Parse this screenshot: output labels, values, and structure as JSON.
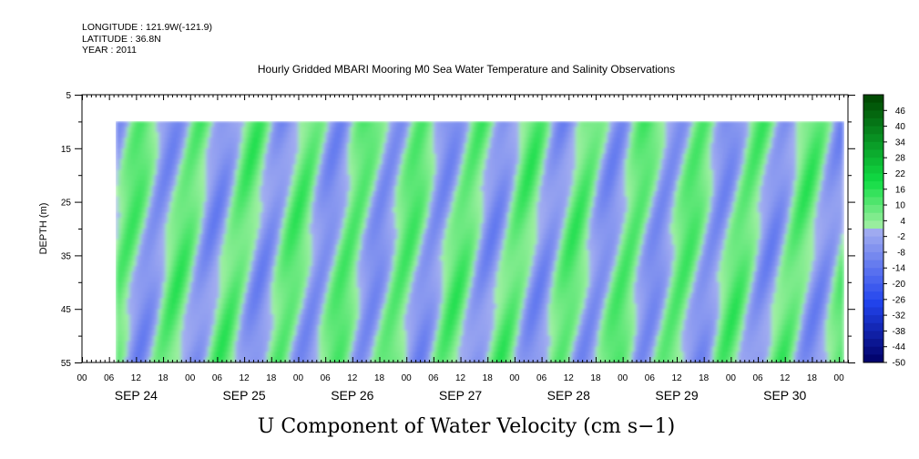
{
  "header": {
    "longitude_line": "LONGITUDE : 121.9W(-121.9)",
    "latitude_line": "LATITUDE : 36.8N",
    "year_line": "YEAR : 2011"
  },
  "chart_data": {
    "type": "heatmap",
    "title": "Hourly Gridded MBARI Mooring M0 Sea Water Temperature and Salinity Observations",
    "variable_title": "U Component of Water Velocity (cm s−1)",
    "ylabel": "DEPTH (m)",
    "y_axis": {
      "range": [
        5,
        55
      ],
      "inverted": true,
      "tick_labels": [
        "5",
        "15",
        "25",
        "35",
        "45",
        "55"
      ],
      "data_top_depth": 10
    },
    "x_axis": {
      "hour_labels": [
        "00",
        "06",
        "12",
        "18",
        "00",
        "06",
        "12",
        "18",
        "00",
        "06",
        "12",
        "18",
        "00",
        "06",
        "12",
        "18",
        "00",
        "06",
        "12",
        "18",
        "00",
        "06",
        "12",
        "18",
        "00",
        "06",
        "12",
        "18",
        "00"
      ],
      "day_labels": [
        "SEP 24",
        "SEP 25",
        "SEP 26",
        "SEP 27",
        "SEP 28",
        "SEP 29",
        "SEP 30"
      ],
      "range_hours": [
        0,
        170
      ],
      "data_start_hour": 7.5,
      "data_end_hour": 169
    },
    "colorbar": {
      "labels": [
        "46",
        "40",
        "34",
        "28",
        "22",
        "16",
        "10",
        "4",
        "-2",
        "-8",
        "-14",
        "-20",
        "-26",
        "-32",
        "-38",
        "-44",
        "-50"
      ],
      "min": -50,
      "max": 52,
      "step": 3,
      "colors": {
        "strong_negative": "#000066",
        "mid_negative": "#2244ee",
        "weak_negative": "#a6b0f0",
        "weak_positive": "#a6f0a6",
        "mid_positive": "#11dd44",
        "strong_positive": "#004400"
      }
    }
  }
}
